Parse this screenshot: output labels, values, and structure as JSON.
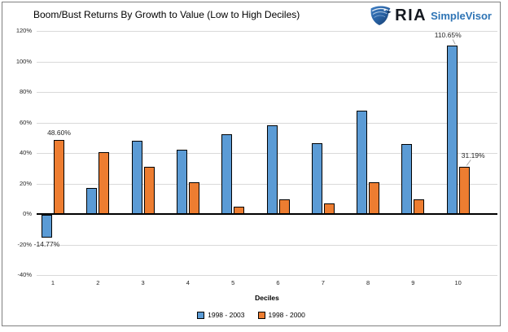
{
  "header": {
    "logo": {
      "icon": "eagle-shield-icon",
      "ria_text": "RIA",
      "product_text": "SimpleVisor",
      "ria_color": "#14181f",
      "product_color": "#2E74B5"
    }
  },
  "chart_data": {
    "type": "bar",
    "title": "Boom/Bust Returns By Growth to Value (Low to High Deciles)",
    "xlabel": "Deciles",
    "ylabel": "",
    "categories": [
      "1",
      "2",
      "3",
      "4",
      "5",
      "6",
      "7",
      "8",
      "9",
      "10"
    ],
    "series": [
      {
        "name": "1998 - 2003",
        "color": "#5B9BD5",
        "values": [
          -14.77,
          17,
          48,
          42,
          52.5,
          58,
          46.5,
          68,
          46,
          110.65
        ]
      },
      {
        "name": "1998 - 2000",
        "color": "#ED7D31",
        "values": [
          48.6,
          40.5,
          31,
          21,
          5,
          9.5,
          7,
          21,
          9.5,
          31.19
        ]
      }
    ],
    "ylim": [
      -40,
      120
    ],
    "y_tick_values": [
      120,
      100,
      80,
      60,
      40,
      20,
      0,
      -20,
      -40
    ],
    "y_tick_labels": [
      "120%",
      "100%",
      "80%",
      "60%",
      "40%",
      "20%",
      "0%",
      "-20%",
      "-40%"
    ],
    "grid": true,
    "legend_position": "bottom",
    "annotations": [
      {
        "series": 0,
        "category": "1",
        "text": "-14.77%",
        "position": "below",
        "leader_line": false
      },
      {
        "series": 1,
        "category": "1",
        "text": "48.60%",
        "position": "above",
        "leader_line": false
      },
      {
        "series": 0,
        "category": "10",
        "text": "110.65%",
        "position": "above-left",
        "leader_line": true
      },
      {
        "series": 1,
        "category": "10",
        "text": "31.19%",
        "position": "above-right",
        "leader_line": true
      }
    ],
    "colors": {
      "gridline": "#D9D9D9",
      "zero_line": "#000000",
      "bar_border": "#000000",
      "tick_text": "#262626",
      "leader_line": "#A6A6A6",
      "frame_border": "#808080"
    }
  }
}
